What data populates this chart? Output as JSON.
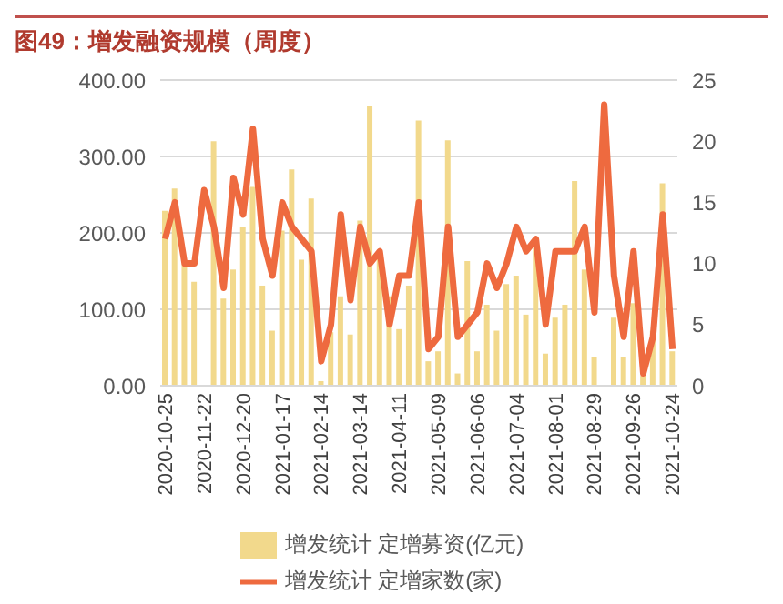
{
  "chart_data": {
    "type": "bar",
    "title": "图49：增发融资规模（周度）",
    "categories": [
      "2020-10-25",
      null,
      null,
      null,
      "2020-11-22",
      null,
      null,
      null,
      "2020-12-20",
      null,
      null,
      null,
      "2021-01-17",
      null,
      null,
      null,
      "2021-02-14",
      null,
      null,
      null,
      "2021-03-14",
      null,
      null,
      null,
      "2021-04-11",
      null,
      null,
      null,
      "2021-05-09",
      null,
      null,
      null,
      "2021-06-06",
      null,
      null,
      null,
      "2021-07-04",
      null,
      null,
      null,
      "2021-08-01",
      null,
      null,
      null,
      "2021-08-29",
      null,
      null,
      null,
      "2021-09-26",
      null,
      null,
      null,
      "2021-10-24"
    ],
    "series": [
      {
        "name": "增发统计 定增募资(亿元)",
        "color": "#f2d98c",
        "values": [
          229,
          258,
          160,
          136,
          null,
          320,
          114,
          152,
          207,
          260,
          131,
          72,
          203,
          283,
          165,
          245,
          6,
          70,
          117,
          67,
          216,
          366,
          169,
          117,
          74,
          131,
          347,
          32,
          45,
          321,
          16,
          163,
          45,
          106,
          72,
          133,
          144,
          93,
          180,
          42,
          89,
          106,
          268,
          152,
          38,
          null,
          89,
          38,
          108,
          13,
          72,
          265,
          45
        ]
      },
      {
        "name": "增发统计 定增家数(家)",
        "type": "line",
        "axis": "y2",
        "color": "#ee6a3f",
        "values": [
          12,
          15,
          10,
          10,
          16,
          13,
          8,
          17,
          14,
          21,
          12,
          9,
          15,
          13,
          12,
          11,
          2,
          5,
          14,
          7,
          13,
          10,
          11,
          5,
          9,
          9,
          15,
          3,
          4,
          13,
          4,
          5,
          6,
          10,
          8,
          10,
          13,
          11,
          12,
          5,
          11,
          11,
          11,
          13,
          6,
          23,
          9,
          4,
          11,
          1,
          4,
          14,
          3
        ]
      }
    ],
    "ylim": [
      0,
      400
    ],
    "yticks": [
      {
        "value": 0,
        "label": "0.00"
      },
      {
        "value": 100,
        "label": "100.00"
      },
      {
        "value": 200,
        "label": "200.00"
      },
      {
        "value": 300,
        "label": "300.00"
      },
      {
        "value": 400,
        "label": "400.00"
      }
    ],
    "y2lim": [
      0,
      25
    ],
    "y2ticks": [
      0,
      5,
      10,
      15,
      20,
      25
    ],
    "grid": "y",
    "legend": "bottom"
  }
}
